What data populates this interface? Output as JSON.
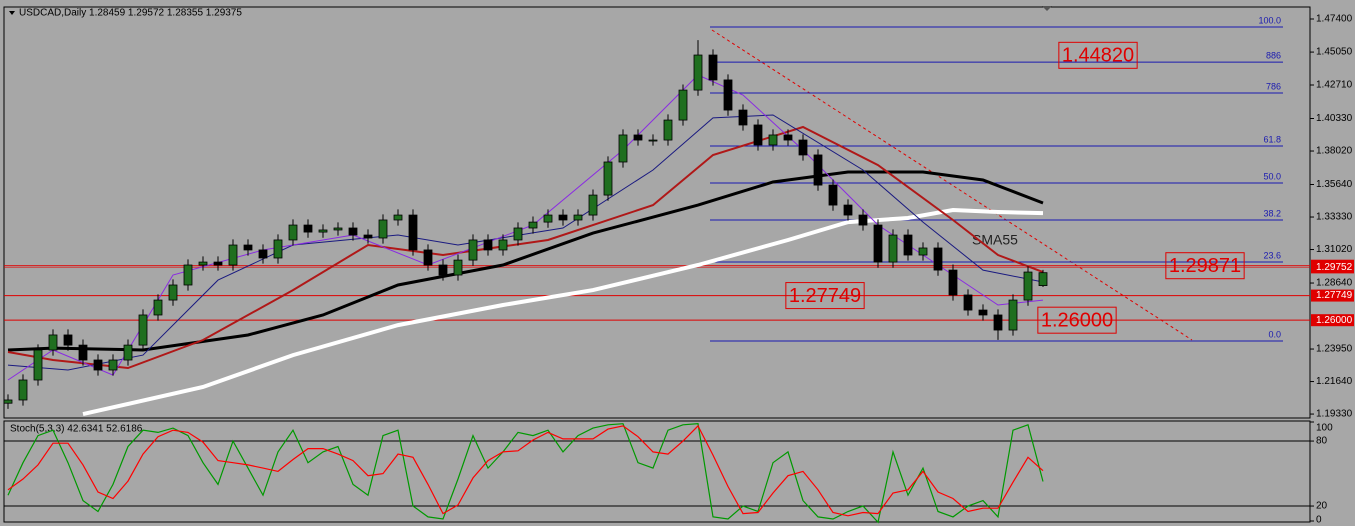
{
  "chart_data": [
    {
      "type": "candlestick",
      "title": "USDCAD,Daily 1.28459 1.29572 1.28355 1.29375",
      "open": [
        1.201,
        1.2033,
        1.2175,
        1.2388,
        1.2495,
        1.2423,
        1.2317,
        1.2246,
        1.2317,
        1.2423,
        1.2637,
        1.2743,
        1.285,
        1.2992,
        1.3013,
        1.2992,
        1.3134,
        1.3099,
        1.3042,
        1.317,
        1.3276,
        1.3226,
        1.3241,
        1.3255,
        1.3205,
        1.3184,
        1.3312,
        1.3347,
        1.3099,
        1.2992,
        1.2921,
        1.3027,
        1.317,
        1.3099,
        1.317,
        1.3255,
        1.3297,
        1.3347,
        1.3312,
        1.3347,
        1.3489,
        1.3724,
        1.3916,
        1.388,
        1.388,
        1.4022,
        1.4235,
        1.4484,
        1.4307,
        1.4093,
        1.3987,
        1.3845,
        1.3916,
        1.388,
        1.3774,
        1.356,
        1.3418,
        1.3347,
        1.3276,
        1.3013,
        1.3205,
        1.3063,
        1.3113,
        1.2956,
        1.2779,
        1.2672,
        1.2637,
        1.253,
        1.2743,
        1.28459
      ],
      "high": [
        1.2073,
        1.2215,
        1.2428,
        1.2535,
        1.2535,
        1.2463,
        1.2357,
        1.2357,
        1.2463,
        1.2677,
        1.2783,
        1.289,
        1.3032,
        1.3053,
        1.3053,
        1.3174,
        1.3174,
        1.3139,
        1.321,
        1.3316,
        1.3316,
        1.3281,
        1.3295,
        1.3295,
        1.3245,
        1.3352,
        1.3387,
        1.3387,
        1.3139,
        1.3032,
        1.3067,
        1.321,
        1.321,
        1.321,
        1.3295,
        1.3337,
        1.3387,
        1.3387,
        1.3387,
        1.3529,
        1.3764,
        1.3956,
        1.3956,
        1.392,
        1.4062,
        1.4275,
        1.459,
        1.4524,
        1.4347,
        1.4133,
        1.4027,
        1.3956,
        1.3956,
        1.392,
        1.3814,
        1.36,
        1.3458,
        1.3387,
        1.3316,
        1.3245,
        1.3245,
        1.3153,
        1.3153,
        1.2996,
        1.2819,
        1.2712,
        1.2677,
        1.2783,
        1.2982,
        1.29572
      ],
      "low": [
        1.197,
        1.1993,
        1.2135,
        1.2348,
        1.2383,
        1.2277,
        1.2206,
        1.2206,
        1.2277,
        1.2383,
        1.2597,
        1.2703,
        1.281,
        1.2952,
        1.2952,
        1.2952,
        1.3059,
        1.3002,
        1.3002,
        1.313,
        1.3186,
        1.3186,
        1.3201,
        1.3165,
        1.3144,
        1.3144,
        1.3272,
        1.3059,
        1.2952,
        1.2881,
        1.2881,
        1.2987,
        1.3059,
        1.3059,
        1.313,
        1.3215,
        1.3257,
        1.3272,
        1.3272,
        1.3307,
        1.3449,
        1.3684,
        1.384,
        1.384,
        1.384,
        1.3982,
        1.4195,
        1.4267,
        1.4053,
        1.3947,
        1.3805,
        1.3805,
        1.384,
        1.3734,
        1.352,
        1.3378,
        1.3307,
        1.3236,
        1.2973,
        1.2973,
        1.3023,
        1.3023,
        1.2916,
        1.2739,
        1.2632,
        1.2597,
        1.246,
        1.249,
        1.2703,
        1.28355
      ],
      "close": [
        1.2033,
        1.2175,
        1.2388,
        1.2495,
        1.2423,
        1.2317,
        1.2246,
        1.2317,
        1.2423,
        1.2637,
        1.2743,
        1.285,
        1.2992,
        1.3013,
        1.2992,
        1.3134,
        1.3099,
        1.3042,
        1.317,
        1.3276,
        1.3226,
        1.3241,
        1.3255,
        1.3205,
        1.3184,
        1.3312,
        1.3347,
        1.3099,
        1.2992,
        1.2921,
        1.3027,
        1.317,
        1.3099,
        1.317,
        1.3255,
        1.3297,
        1.3347,
        1.3312,
        1.3347,
        1.3489,
        1.3724,
        1.3916,
        1.388,
        1.388,
        1.4022,
        1.4235,
        1.4484,
        1.4307,
        1.4093,
        1.3987,
        1.3845,
        1.3916,
        1.388,
        1.3774,
        1.356,
        1.3418,
        1.3347,
        1.3276,
        1.3013,
        1.3205,
        1.3063,
        1.3113,
        1.2956,
        1.2779,
        1.2672,
        1.2637,
        1.253,
        1.2743,
        1.2942,
        1.29375
      ],
      "up_color": "#1f6f1f",
      "down_color": "#000000",
      "ylim": [
        1.1905,
        1.4804
      ],
      "yticks": [
        {
          "value": 1.474,
          "label": "1.47400"
        },
        {
          "value": 1.4505,
          "label": "1.45050"
        },
        {
          "value": 1.4271,
          "label": "1.42710"
        },
        {
          "value": 1.4033,
          "label": "1.40330"
        },
        {
          "value": 1.3802,
          "label": "1.38020"
        },
        {
          "value": 1.3564,
          "label": "1.35640"
        },
        {
          "value": 1.3333,
          "label": "1.33330"
        },
        {
          "value": 1.3102,
          "label": "1.31020"
        },
        {
          "value": 1.2864,
          "label": "1.28640"
        },
        {
          "value": 1.2395,
          "label": "1.23950"
        },
        {
          "value": 1.2164,
          "label": "1.21640"
        },
        {
          "value": 1.1933,
          "label": "1.19330"
        }
      ],
      "moving_averages": [
        {
          "color": "#ffffff",
          "width": 4,
          "x": [
            5,
            13,
            19,
            26,
            33,
            39,
            46,
            52,
            56,
            60,
            63,
            66,
            69
          ],
          "values": [
            1.1933,
            1.2125,
            1.2352,
            1.2565,
            1.2708,
            1.2814,
            1.2992,
            1.317,
            1.3297,
            1.3326,
            1.3383,
            1.3369,
            1.3361
          ]
        },
        {
          "color": "#000000",
          "width": 3,
          "x": [
            0,
            3,
            9,
            16,
            21,
            26,
            33,
            39,
            46,
            51,
            56,
            61,
            65,
            69
          ],
          "values": [
            1.2388,
            1.2402,
            1.2388,
            1.2495,
            1.2637,
            1.285,
            1.2992,
            1.3219,
            1.3418,
            1.3582,
            1.3653,
            1.3653,
            1.3596,
            1.3433
          ]
        },
        {
          "color": "#b01818",
          "width": 2,
          "x": [
            0,
            3,
            8,
            13,
            19,
            24,
            29,
            36,
            43,
            47,
            53,
            58,
            63,
            66,
            69
          ],
          "values": [
            1.2374,
            1.2317,
            1.226,
            1.2459,
            1.2814,
            1.3134,
            1.3063,
            1.317,
            1.3418,
            1.3774,
            1.3973,
            1.3702,
            1.3312,
            1.3063,
            1.2942
          ]
        },
        {
          "color": "#1a1a80",
          "width": 1,
          "x": [
            0,
            4,
            9,
            14,
            19,
            26,
            30,
            37,
            43,
            47,
            51,
            57,
            61,
            65,
            69
          ],
          "values": [
            1.2281,
            1.2246,
            1.2352,
            1.2885,
            1.3134,
            1.3205,
            1.3134,
            1.3255,
            1.3667,
            1.4037,
            1.4058,
            1.3667,
            1.3297,
            1.2956,
            1.2871
          ]
        },
        {
          "color": "#8a2be2",
          "width": 1,
          "x": [
            0,
            3,
            7,
            11,
            17,
            23,
            28,
            35,
            41,
            46,
            49,
            53,
            58,
            63,
            66,
            69
          ],
          "values": [
            1.2175,
            1.2388,
            1.221,
            1.2921,
            1.3099,
            1.3205,
            1.2992,
            1.3276,
            1.3809,
            1.4342,
            1.42,
            1.3809,
            1.3276,
            1.2921,
            1.2708,
            1.2743
          ]
        }
      ],
      "annotation": "SMA55",
      "fibonacci": {
        "color": "#1a1ab0",
        "levels": [
          {
            "value": 1.4683,
            "label": "100.0"
          },
          {
            "value": 1.4434,
            "label": "886"
          },
          {
            "value": 1.4214,
            "label": "786"
          },
          {
            "value": 1.3838,
            "label": "61.8"
          },
          {
            "value": 1.3575,
            "label": "50.0"
          },
          {
            "value": 1.3312,
            "label": "38.2"
          },
          {
            "value": 1.3013,
            "label": "23.6"
          },
          {
            "value": 1.2452,
            "label": "0.0"
          }
        ]
      },
      "levels": [
        {
          "value": 1.4482,
          "label": "1.44820",
          "line": false
        },
        {
          "value": 1.29871,
          "label": "1.29871",
          "line": true
        },
        {
          "value": 1.27749,
          "label": "1.27749",
          "line": true
        },
        {
          "value": 1.26,
          "label": "1.26000",
          "line": true
        }
      ],
      "price_marker": {
        "value": 1.29752,
        "label": "1.29752"
      },
      "level_color": "#e00000"
    },
    {
      "type": "stochastic",
      "title": "Stoch(5,3,3) 42.6341 52.6186",
      "ylim": [
        0,
        100
      ],
      "yticks": [
        100,
        80,
        20,
        0
      ],
      "levels": [
        80,
        20
      ],
      "series": [
        {
          "color": "#009900",
          "values": [
            30,
            60,
            85,
            90,
            60,
            25,
            15,
            40,
            75,
            90,
            88,
            92,
            85,
            60,
            40,
            80,
            55,
            30,
            70,
            90,
            60,
            70,
            75,
            40,
            30,
            85,
            90,
            20,
            10,
            8,
            45,
            85,
            55,
            70,
            88,
            85,
            90,
            70,
            85,
            92,
            95,
            96,
            60,
            55,
            90,
            95,
            96,
            10,
            8,
            20,
            15,
            60,
            70,
            25,
            10,
            8,
            15,
            20,
            5,
            70,
            30,
            55,
            15,
            10,
            20,
            25,
            10,
            90,
            95,
            42.6341
          ]
        },
        {
          "color": "#ff0000",
          "values": [
            35,
            45,
            58,
            78,
            78,
            58,
            33,
            27,
            43,
            68,
            84,
            90,
            88,
            79,
            62,
            60,
            58,
            55,
            52,
            63,
            73,
            73,
            68,
            62,
            48,
            50,
            68,
            65,
            40,
            13,
            21,
            46,
            62,
            70,
            71,
            81,
            88,
            82,
            82,
            82,
            91,
            94,
            84,
            70,
            68,
            80,
            94,
            67,
            38,
            13,
            14,
            32,
            48,
            52,
            35,
            14,
            11,
            14,
            13,
            32,
            35,
            52,
            33,
            27,
            15,
            18,
            18,
            42,
            65,
            52.6186
          ]
        }
      ]
    }
  ]
}
